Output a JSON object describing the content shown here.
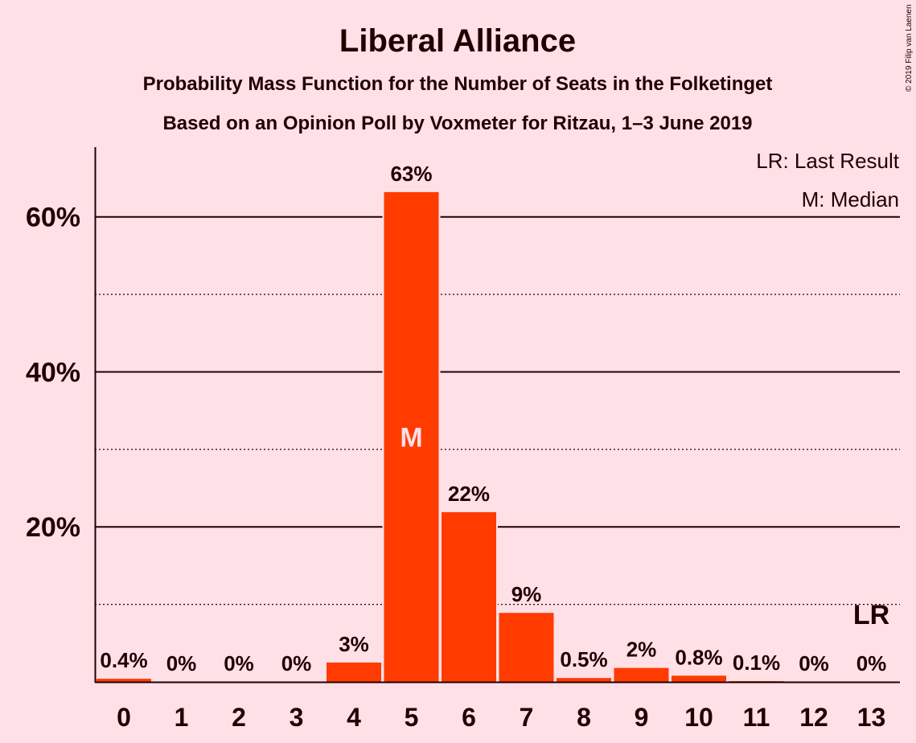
{
  "colors": {
    "background": "#ffe0e6",
    "bar": "#ff3b00",
    "text": "#200000",
    "median_text": "#ffe0e6"
  },
  "copyright": "© 2019 Filip van Laenen",
  "chart_data": {
    "type": "bar",
    "title": "Liberal Alliance",
    "subtitle": "Probability Mass Function for the Number of Seats in the Folketinget",
    "subtitle2": "Based on an Opinion Poll by Voxmeter for Ritzau, 1–3 June 2019",
    "xlabel": "",
    "ylabel": "",
    "categories": [
      "0",
      "1",
      "2",
      "3",
      "4",
      "5",
      "6",
      "7",
      "8",
      "9",
      "10",
      "11",
      "12",
      "13"
    ],
    "values": [
      0.4,
      0,
      0,
      0,
      2.5,
      63.2,
      21.9,
      8.9,
      0.5,
      1.8,
      0.8,
      0.1,
      0,
      0
    ],
    "data_labels": [
      "0.4%",
      "0%",
      "0%",
      "0%",
      "3%",
      "63%",
      "22%",
      "9%",
      "0.5%",
      "2%",
      "0.8%",
      "0.1%",
      "0%",
      "0%"
    ],
    "ylim": [
      0,
      69
    ],
    "yticks": [
      20,
      40,
      60
    ],
    "ytick_labels": [
      "20%",
      "40%",
      "60%"
    ],
    "minor_gridlines": [
      10,
      30,
      50
    ],
    "median_index": 5,
    "median_marker": "M",
    "last_result_index": 13,
    "last_result_marker": "LR",
    "legend": [
      "LR: Last Result",
      "M: Median"
    ],
    "legend_position": "top-right",
    "grid": true
  }
}
